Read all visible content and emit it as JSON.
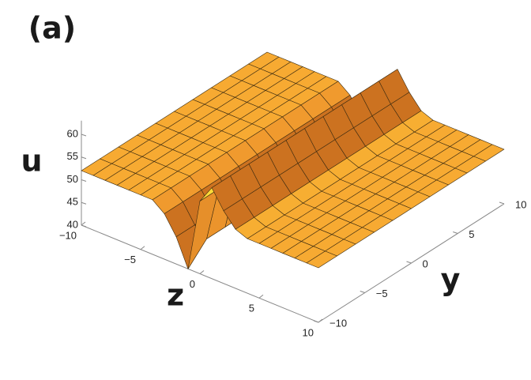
{
  "chart_data": {
    "type": "surface3d",
    "title": "(a)",
    "xlabel": "z",
    "ylabel": "y",
    "ulabel": "u",
    "xlim": [
      -10,
      10
    ],
    "ylim": [
      -10,
      10
    ],
    "ulim": [
      40,
      63
    ],
    "xticks": [
      {
        "value": -10,
        "label": "−10"
      },
      {
        "value": -5,
        "label": "−5"
      },
      0,
      5,
      10
    ],
    "yticks": [
      {
        "value": -10,
        "label": "−10"
      },
      {
        "value": -5,
        "label": "−5"
      },
      0,
      5,
      10
    ],
    "uticks": [
      40,
      45,
      50,
      55,
      60
    ],
    "color": "#f5a030",
    "high_color": "#ffe23a",
    "low_color": "#c2661c",
    "x": [
      -10,
      -9,
      -8,
      -7,
      -6,
      -5,
      -4,
      -3,
      -2,
      -1,
      0,
      1,
      2,
      3,
      4,
      5,
      6,
      7,
      8,
      9,
      10
    ],
    "y": [
      -10,
      -8,
      -6,
      -4,
      -2,
      0,
      2,
      4,
      6,
      8,
      10
    ],
    "values": [
      [
        52,
        52,
        52,
        52,
        52,
        52,
        52,
        50,
        46,
        40,
        56,
        60,
        56,
        53,
        52,
        52,
        52,
        52,
        52,
        52,
        52
      ],
      [
        52,
        52,
        52,
        52,
        52,
        52,
        52,
        50,
        46,
        44,
        56,
        60,
        56,
        53,
        52,
        52,
        52,
        52,
        52,
        52,
        52
      ],
      [
        52,
        52,
        52,
        52,
        52,
        52,
        52,
        50,
        46,
        44,
        56,
        60,
        56,
        53,
        52,
        52,
        52,
        52,
        52,
        52,
        52
      ],
      [
        52,
        52,
        52,
        52,
        52,
        52,
        52,
        50,
        46,
        44,
        56,
        60,
        56,
        53,
        52,
        52,
        52,
        52,
        52,
        52,
        52
      ],
      [
        52,
        52,
        52,
        52,
        52,
        52,
        52,
        50,
        46,
        44,
        56,
        60,
        56,
        53,
        52,
        52,
        52,
        52,
        52,
        52,
        52
      ],
      [
        52,
        52,
        52,
        52,
        52,
        52,
        52,
        50,
        46,
        44,
        56,
        60,
        56,
        53,
        52,
        52,
        52,
        52,
        52,
        52,
        52
      ],
      [
        52,
        52,
        52,
        52,
        52,
        52,
        52,
        50,
        46,
        44,
        56,
        60,
        56,
        53,
        52,
        52,
        52,
        52,
        52,
        52,
        52
      ],
      [
        52,
        52,
        52,
        52,
        52,
        52,
        52,
        50,
        46,
        44,
        56,
        60,
        56,
        53,
        52,
        52,
        52,
        52,
        52,
        52,
        52
      ],
      [
        52,
        52,
        52,
        52,
        52,
        52,
        52,
        50,
        46,
        44,
        56,
        60,
        56,
        53,
        52,
        52,
        52,
        52,
        52,
        52,
        52
      ],
      [
        52,
        52,
        52,
        52,
        52,
        52,
        52,
        50,
        46,
        44,
        56,
        60,
        56,
        53,
        52,
        52,
        52,
        52,
        52,
        52,
        52
      ],
      [
        52,
        52,
        52,
        52,
        52,
        52,
        52,
        50,
        46,
        44,
        56,
        60,
        56,
        53,
        52,
        52,
        52,
        52,
        52,
        52,
        52
      ]
    ]
  }
}
